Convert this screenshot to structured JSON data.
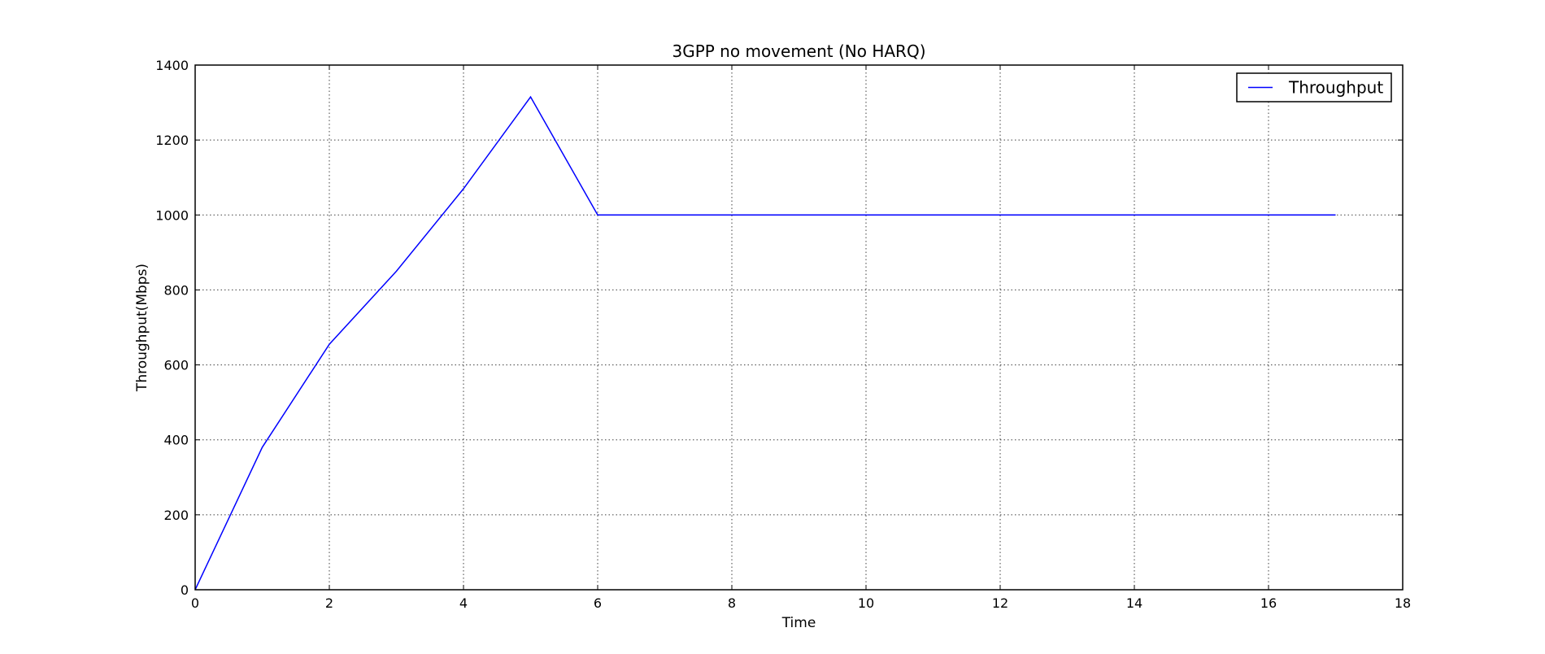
{
  "chart_data": {
    "type": "line",
    "title": "3GPP no movement (No HARQ)",
    "xlabel": "Time",
    "ylabel": "Throughput(Mbps)",
    "xlim": [
      0,
      18
    ],
    "ylim": [
      0,
      1400
    ],
    "xticks": [
      0,
      2,
      4,
      6,
      8,
      10,
      12,
      14,
      16,
      18
    ],
    "yticks": [
      0,
      200,
      400,
      600,
      800,
      1000,
      1200,
      1400
    ],
    "grid": true,
    "legend": {
      "placement": "top-right",
      "entries": [
        "Throughput"
      ]
    },
    "series": [
      {
        "name": "Throughput",
        "color": "#0000ff",
        "x": [
          0,
          1,
          2,
          3,
          4,
          5,
          6,
          7,
          8,
          9,
          10,
          11,
          12,
          13,
          14,
          15,
          16,
          17
        ],
        "y": [
          0,
          380,
          655,
          850,
          1070,
          1315,
          1000,
          1000,
          1000,
          1000,
          1000,
          1000,
          1000,
          1000,
          1000,
          1000,
          1000,
          1000
        ]
      }
    ]
  }
}
